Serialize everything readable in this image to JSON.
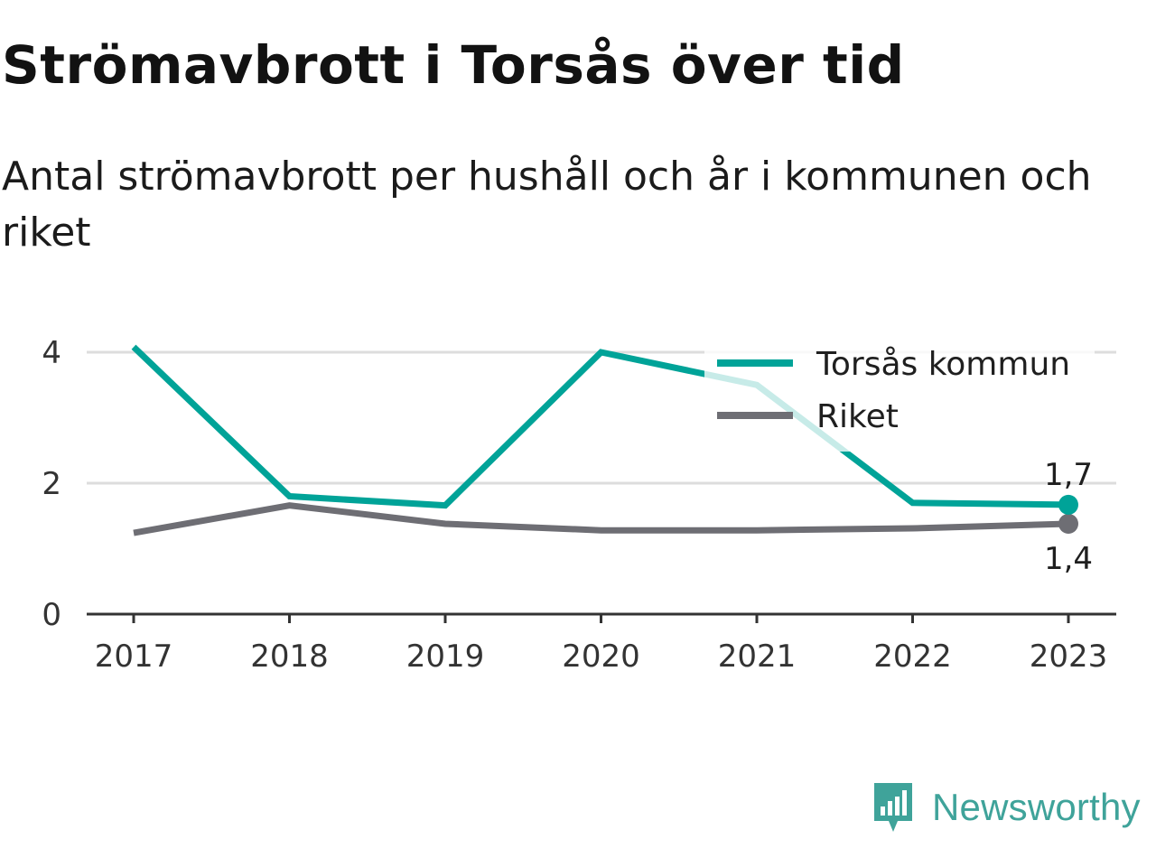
{
  "header": {
    "title": "Strömavbrott i Torsås över tid",
    "subtitle": "Antal strömavbrott per hushåll och år i kommunen och riket"
  },
  "brand": {
    "name": "Newsworthy",
    "icon": "newsworthy-logo-icon",
    "color": "#3fa39a"
  },
  "chart_data": {
    "type": "line",
    "title": "Strömavbrott i Torsås över tid",
    "subtitle": "Antal strömavbrott per hushåll och år i kommunen och riket",
    "xlabel": "",
    "ylabel": "",
    "x": [
      "2017",
      "2018",
      "2019",
      "2020",
      "2021",
      "2022",
      "2023"
    ],
    "ylim": [
      0,
      4
    ],
    "y_ticks": [
      0,
      2,
      4
    ],
    "y_tick_labels": [
      "0",
      "2",
      "4"
    ],
    "grid": "horizontal",
    "legend_position": "top-right",
    "series": [
      {
        "name": "Torsås kommun",
        "color": "#00a398",
        "values": [
          4.08,
          1.8,
          1.66,
          4.0,
          3.5,
          1.7,
          1.67
        ],
        "end_label": "1,7"
      },
      {
        "name": "Riket",
        "color": "#6e6e74",
        "values": [
          1.24,
          1.66,
          1.38,
          1.28,
          1.28,
          1.31,
          1.38
        ],
        "end_label": "1,4"
      }
    ]
  }
}
